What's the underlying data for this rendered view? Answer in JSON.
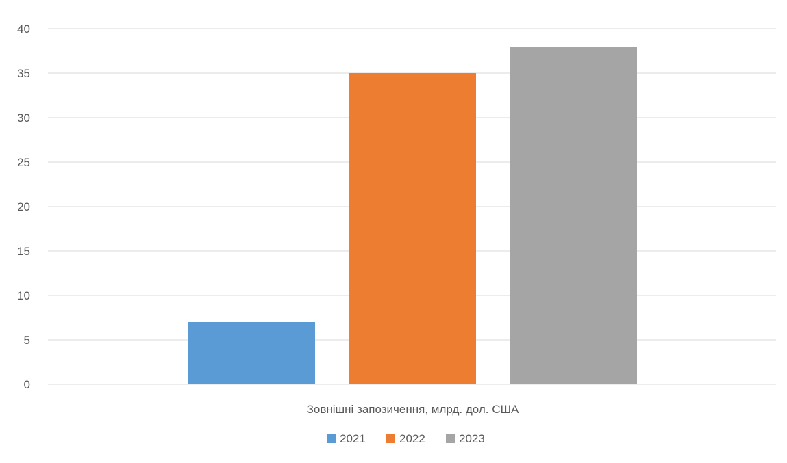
{
  "chart_data": {
    "type": "bar",
    "categories": [
      "Зовнішні запозичення, млрд. дол. США"
    ],
    "series": [
      {
        "name": "2021",
        "values": [
          7
        ],
        "color": "#5b9bd5"
      },
      {
        "name": "2022",
        "values": [
          35
        ],
        "color": "#ed7d31"
      },
      {
        "name": "2023",
        "values": [
          38
        ],
        "color": "#a5a5a5"
      }
    ],
    "yticks": [
      0,
      5,
      10,
      15,
      20,
      25,
      30,
      35,
      40
    ],
    "ylim": [
      0,
      40
    ],
    "grid": true,
    "legend": "bottom-center"
  }
}
